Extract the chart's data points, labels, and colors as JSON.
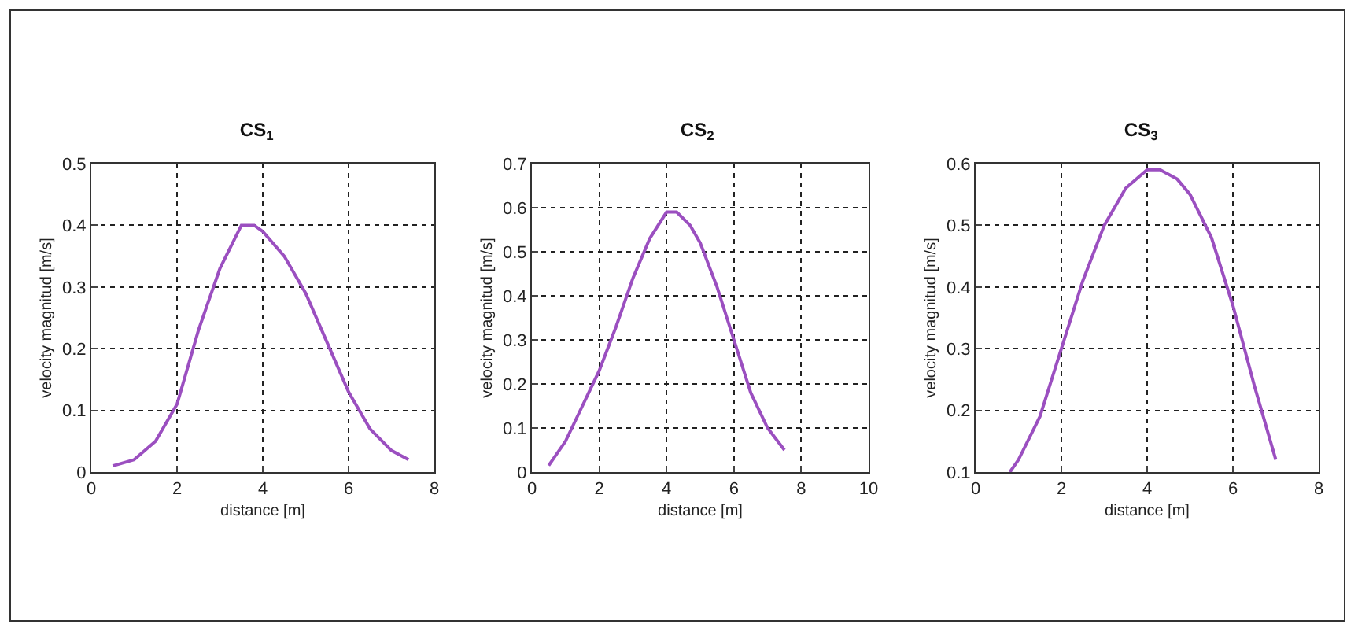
{
  "chart_data": [
    {
      "type": "line",
      "title": "CS$_{1}$",
      "xlabel": "distance [m]",
      "ylabel": "velocity magnitud [m/s]",
      "xlim": [
        0,
        8
      ],
      "xticks": [
        0,
        2,
        4,
        6,
        8
      ],
      "ylim": [
        0,
        0.5
      ],
      "yticks": [
        0,
        0.1,
        0.2,
        0.3,
        0.4,
        0.5
      ],
      "grid": true,
      "marker": "none",
      "line_style": "solid",
      "series": [
        {
          "color": "#9b4fc0",
          "x": [
            0.5,
            1,
            1.5,
            2,
            2.5,
            3,
            3.5,
            3.8,
            4,
            4.5,
            5,
            5.5,
            6,
            6.5,
            7,
            7.4
          ],
          "values": [
            0.01,
            0.02,
            0.05,
            0.11,
            0.23,
            0.33,
            0.4,
            0.4,
            0.39,
            0.35,
            0.29,
            0.21,
            0.13,
            0.07,
            0.035,
            0.02
          ]
        }
      ]
    },
    {
      "type": "line",
      "title": "CS$_{2}$",
      "xlabel": "distance [m]",
      "ylabel": "velocity magnitud [m/s]",
      "xlim": [
        0,
        10
      ],
      "xticks": [
        0,
        2,
        4,
        6,
        8,
        10
      ],
      "ylim": [
        0,
        0.7
      ],
      "yticks": [
        0,
        0.1,
        0.2,
        0.3,
        0.4,
        0.5,
        0.6,
        0.7
      ],
      "grid": true,
      "marker": "none",
      "line_style": "solid",
      "series": [
        {
          "color": "#9b4fc0",
          "x": [
            0.5,
            1,
            1.5,
            2,
            2.5,
            3,
            3.5,
            4,
            4.3,
            4.7,
            5,
            5.5,
            6,
            6.5,
            7,
            7.5
          ],
          "values": [
            0.015,
            0.07,
            0.15,
            0.23,
            0.33,
            0.44,
            0.53,
            0.59,
            0.59,
            0.56,
            0.52,
            0.42,
            0.3,
            0.18,
            0.1,
            0.05
          ]
        }
      ]
    },
    {
      "type": "line",
      "title": "CS$_{3}$",
      "xlabel": "distance [m]",
      "ylabel": "velocity magnitud [m/s]",
      "xlim": [
        0,
        8
      ],
      "xticks": [
        0,
        2,
        4,
        6,
        8
      ],
      "ylim": [
        0.1,
        0.6
      ],
      "yticks": [
        0.1,
        0.2,
        0.3,
        0.4,
        0.5,
        0.6
      ],
      "grid": true,
      "marker": "none",
      "line_style": "solid",
      "series": [
        {
          "color": "#9b4fc0",
          "x": [
            0.8,
            1,
            1.5,
            2,
            2.5,
            3,
            3.5,
            4,
            4.3,
            4.7,
            5,
            5.5,
            6,
            6.5,
            7
          ],
          "values": [
            0.1,
            0.12,
            0.19,
            0.3,
            0.41,
            0.5,
            0.56,
            0.59,
            0.59,
            0.575,
            0.55,
            0.48,
            0.37,
            0.24,
            0.12
          ]
        }
      ]
    }
  ]
}
